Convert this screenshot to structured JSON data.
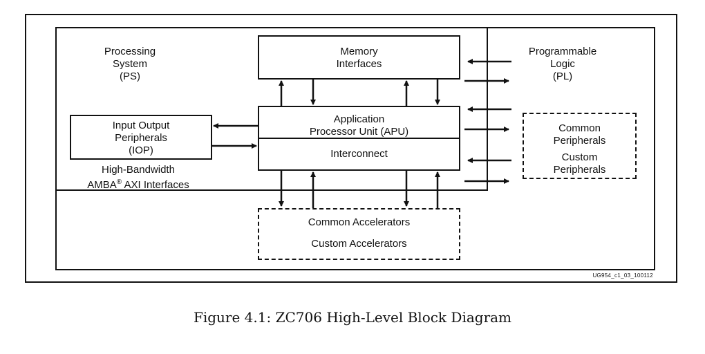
{
  "diagram": {
    "ps_label": "Processing\nSystem\n(PS)",
    "pl_label": "Programmable\nLogic\n(PL)",
    "memory_label": "Memory\nInterfaces",
    "apu_label": "Application\nProcessor Unit (APU)",
    "interconnect_label": "Interconnect",
    "iop_label": "Input Output\nPeripherals\n(IOP)",
    "amba_line1": "High-Bandwidth",
    "amba_line2_prefix": "AMBA",
    "amba_sup": "®",
    "amba_line2_suffix": " AXI Interfaces",
    "peripherals_common": "Common\nPeripherals",
    "peripherals_custom": "Custom\nPeripherals",
    "accel_common": "Common Accelerators",
    "accel_custom": "Custom Accelerators",
    "figure_id": "UG954_c1_03_100112"
  },
  "caption": "Figure 4.1: ZC706 High-Level Block Diagram"
}
